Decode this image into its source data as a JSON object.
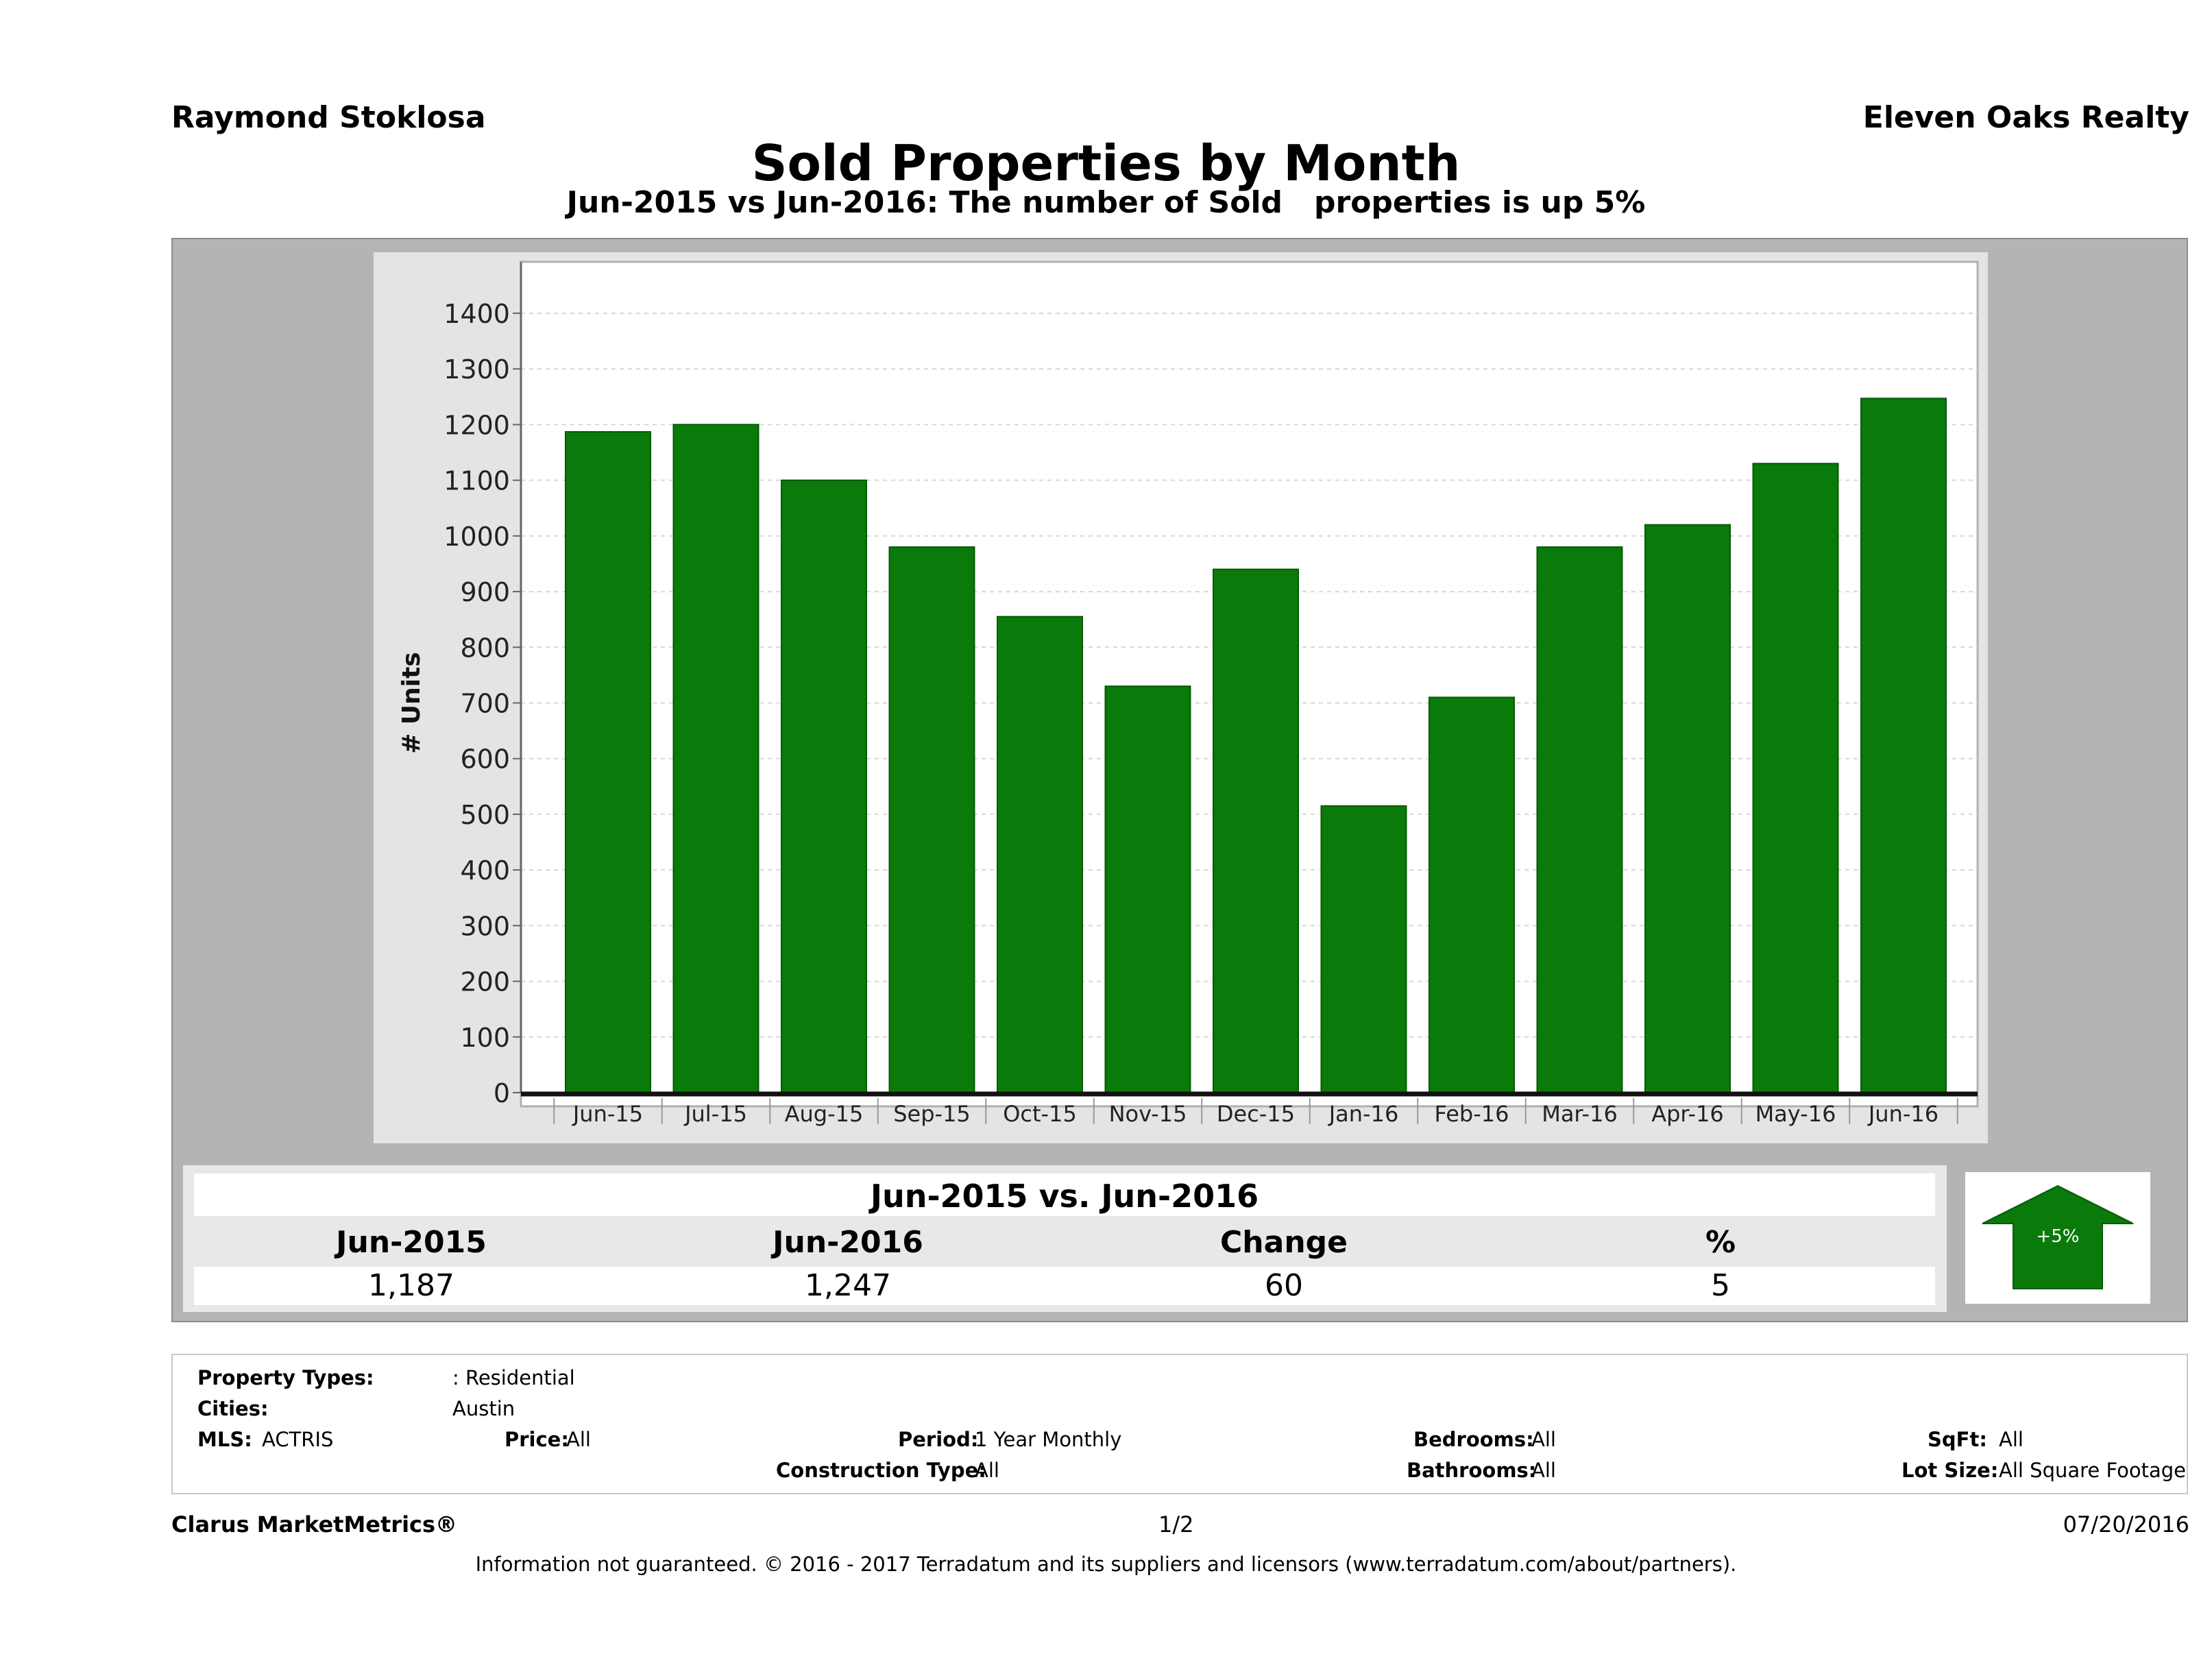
{
  "header": {
    "agent": "Raymond Stoklosa",
    "brokerage": "Eleven Oaks Realty",
    "title": "Sold Properties by Month",
    "subtitle": "Jun-2015 vs Jun-2016: The number of Sold   properties is up 5%"
  },
  "chart_data": {
    "type": "bar",
    "ylabel": "# Units",
    "xlabel": "",
    "ylim": [
      0,
      1400
    ],
    "yticks": [
      0,
      100,
      200,
      300,
      400,
      500,
      600,
      700,
      800,
      900,
      1000,
      1100,
      1200,
      1300,
      1400
    ],
    "grid": true,
    "categories": [
      "Jun-15",
      "Jul-15",
      "Aug-15",
      "Sep-15",
      "Oct-15",
      "Nov-15",
      "Dec-15",
      "Jan-16",
      "Feb-16",
      "Mar-16",
      "Apr-16",
      "May-16",
      "Jun-16"
    ],
    "values": [
      1187,
      1200,
      1100,
      980,
      855,
      730,
      940,
      515,
      710,
      980,
      1020,
      1130,
      1247
    ],
    "bar_color": "#0a7a0a"
  },
  "summary": {
    "title": "Jun-2015 vs. Jun-2016",
    "headers": [
      "Jun-2015",
      "Jun-2016",
      "Change",
      "%"
    ],
    "values": [
      "1,187",
      "1,247",
      "60",
      "5"
    ],
    "badge": "+5%",
    "badge_color": "#0a7a0a",
    "arrow_icon": "up-arrow-icon"
  },
  "filters": {
    "property_types_label": "Property Types:",
    "property_types_value": ": Residential",
    "cities_label": "Cities:",
    "cities_value": "Austin",
    "mls_label": "MLS:",
    "mls_value": "ACTRIS",
    "price_label": "Price:",
    "price_value": "All",
    "period_label": "Period:",
    "period_value": "1 Year Monthly",
    "construction_label": "Construction Type:",
    "construction_value": "All",
    "bedrooms_label": "Bedrooms:",
    "bedrooms_value": "All",
    "bathrooms_label": "Bathrooms:",
    "bathrooms_value": "All",
    "sqft_label": "SqFt:",
    "sqft_value": "All",
    "lot_label": "Lot Size:",
    "lot_value": "All Square Footage"
  },
  "footer": {
    "brand": "Clarus MarketMetrics®",
    "page": "1/2",
    "date": "07/20/2016",
    "disclaimer": "Information not guaranteed. © 2016 - 2017 Terradatum and its suppliers and licensors (www.terradatum.com/about/partners)."
  }
}
